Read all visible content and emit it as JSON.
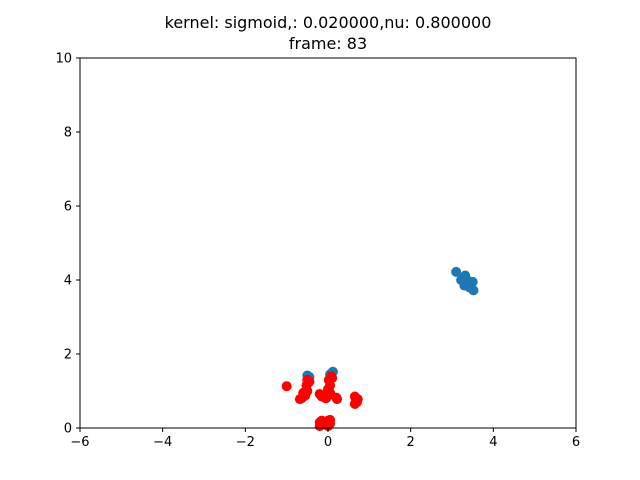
{
  "chart_data": {
    "type": "scatter",
    "title_line1": "kernel:  sigmoid,: 0.020000,nu:  0.800000",
    "title_line2": "frame: 83",
    "xlabel": "",
    "ylabel": "",
    "xlim": [
      -6,
      6
    ],
    "ylim": [
      0,
      10
    ],
    "x_ticks": [
      -6,
      -4,
      -2,
      0,
      2,
      4,
      6
    ],
    "y_ticks": [
      0,
      2,
      4,
      6,
      8,
      10
    ],
    "x_tick_labels": [
      "−6",
      "−4",
      "−2",
      "0",
      "2",
      "4",
      "6"
    ],
    "y_tick_labels": [
      "0",
      "2",
      "4",
      "6",
      "8",
      "10"
    ],
    "grid": false,
    "series": [
      {
        "color": "#1f77b4",
        "points": [
          [
            3.1,
            4.22
          ],
          [
            3.22,
            4.0
          ],
          [
            3.32,
            4.12
          ],
          [
            3.4,
            3.97
          ],
          [
            3.5,
            3.95
          ],
          [
            3.3,
            3.85
          ],
          [
            3.42,
            3.8
          ],
          [
            3.52,
            3.72
          ],
          [
            3.35,
            3.9
          ],
          [
            3.28,
            4.05
          ],
          [
            -0.5,
            1.42
          ],
          [
            0.1,
            1.5
          ],
          [
            0.05,
            1.45
          ],
          [
            -0.45,
            1.38
          ],
          [
            0.12,
            1.52
          ]
        ]
      },
      {
        "color": "#ff0000",
        "points": [
          [
            -1.0,
            1.13
          ],
          [
            -0.5,
            1.3
          ],
          [
            -0.48,
            1.22
          ],
          [
            -0.52,
            1.15
          ],
          [
            -0.45,
            1.25
          ],
          [
            -0.62,
            0.82
          ],
          [
            -0.68,
            0.78
          ],
          [
            -0.55,
            0.88
          ],
          [
            -0.6,
            0.95
          ],
          [
            -0.5,
            1.0
          ],
          [
            -0.2,
            0.92
          ],
          [
            -0.15,
            0.85
          ],
          [
            -0.05,
            0.8
          ],
          [
            0.0,
            0.88
          ],
          [
            0.05,
            0.95
          ],
          [
            0.0,
            1.05
          ],
          [
            0.05,
            1.15
          ],
          [
            0.02,
            1.3
          ],
          [
            0.08,
            1.4
          ],
          [
            0.1,
            1.35
          ],
          [
            0.2,
            0.82
          ],
          [
            0.22,
            0.78
          ],
          [
            0.65,
            0.85
          ],
          [
            0.68,
            0.75
          ],
          [
            0.7,
            0.7
          ],
          [
            0.65,
            0.65
          ],
          [
            0.72,
            0.78
          ],
          [
            -0.2,
            0.15
          ],
          [
            -0.1,
            0.1
          ],
          [
            0.0,
            0.2
          ],
          [
            0.05,
            0.22
          ],
          [
            -0.2,
            0.05
          ],
          [
            0.05,
            0.12
          ],
          [
            -0.15,
            0.2
          ],
          [
            0.0,
            0.05
          ]
        ]
      }
    ]
  }
}
